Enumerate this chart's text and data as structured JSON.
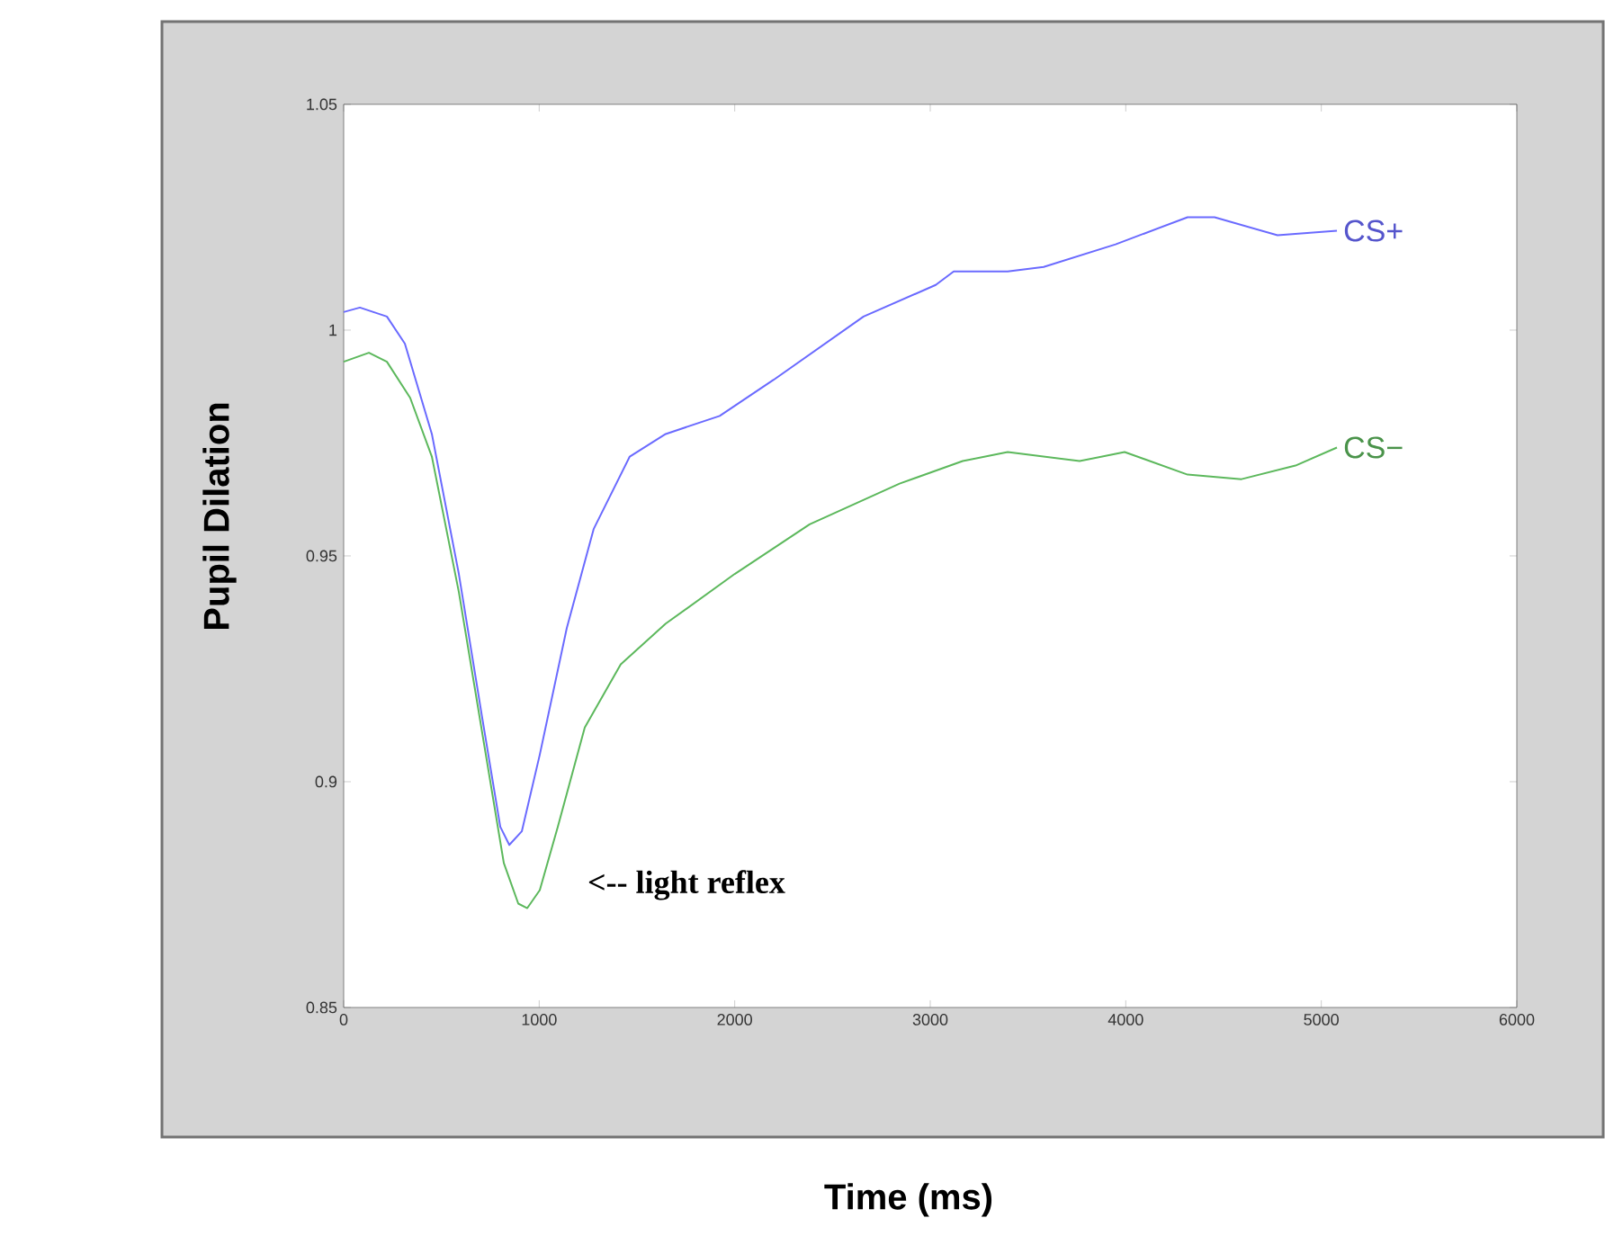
{
  "chart_data": {
    "type": "line",
    "xlabel": "Time (ms)",
    "ylabel": "Pupil Dilation",
    "xlim": [
      0,
      6000
    ],
    "xticks": [
      0,
      1000,
      2000,
      3000,
      4000,
      5000,
      6000
    ],
    "ylim": [
      0.85,
      1.05
    ],
    "yticks": [
      0.85,
      0.9,
      0.95,
      1,
      1.05
    ],
    "grid": false,
    "legend": false,
    "marker": "none",
    "line_style": "solid",
    "annotations": [
      "<--  light reflex"
    ],
    "series": [
      {
        "name": "CS+",
        "color": "#6a6aff",
        "x": [
          0,
          83,
          221,
          313,
          451,
          589,
          709,
          801,
          847,
          911,
          1003,
          1141,
          1279,
          1463,
          1647,
          1923,
          2199,
          2659,
          3028,
          3120,
          3396,
          3580,
          3948,
          4316,
          4454,
          4776,
          5080
        ],
        "values": [
          1.004,
          1.005,
          1.003,
          0.997,
          0.977,
          0.946,
          0.914,
          0.89,
          0.886,
          0.889,
          0.906,
          0.934,
          0.956,
          0.972,
          0.977,
          0.981,
          0.989,
          1.003,
          1.01,
          1.013,
          1.013,
          1.014,
          1.019,
          1.025,
          1.025,
          1.021,
          1.022
        ]
      },
      {
        "name": "CS−",
        "color": "#5cb85c",
        "x": [
          0,
          129,
          221,
          340,
          451,
          589,
          727,
          819,
          893,
          939,
          1003,
          1095,
          1233,
          1417,
          1647,
          2000,
          2383,
          2843,
          3166,
          3396,
          3764,
          3994,
          4316,
          4592,
          4868,
          5080
        ],
        "values": [
          0.993,
          0.995,
          0.993,
          0.985,
          0.972,
          0.942,
          0.906,
          0.882,
          0.873,
          0.872,
          0.876,
          0.89,
          0.912,
          0.926,
          0.935,
          0.946,
          0.957,
          0.966,
          0.971,
          0.973,
          0.971,
          0.973,
          0.968,
          0.967,
          0.97,
          0.974
        ]
      }
    ]
  }
}
